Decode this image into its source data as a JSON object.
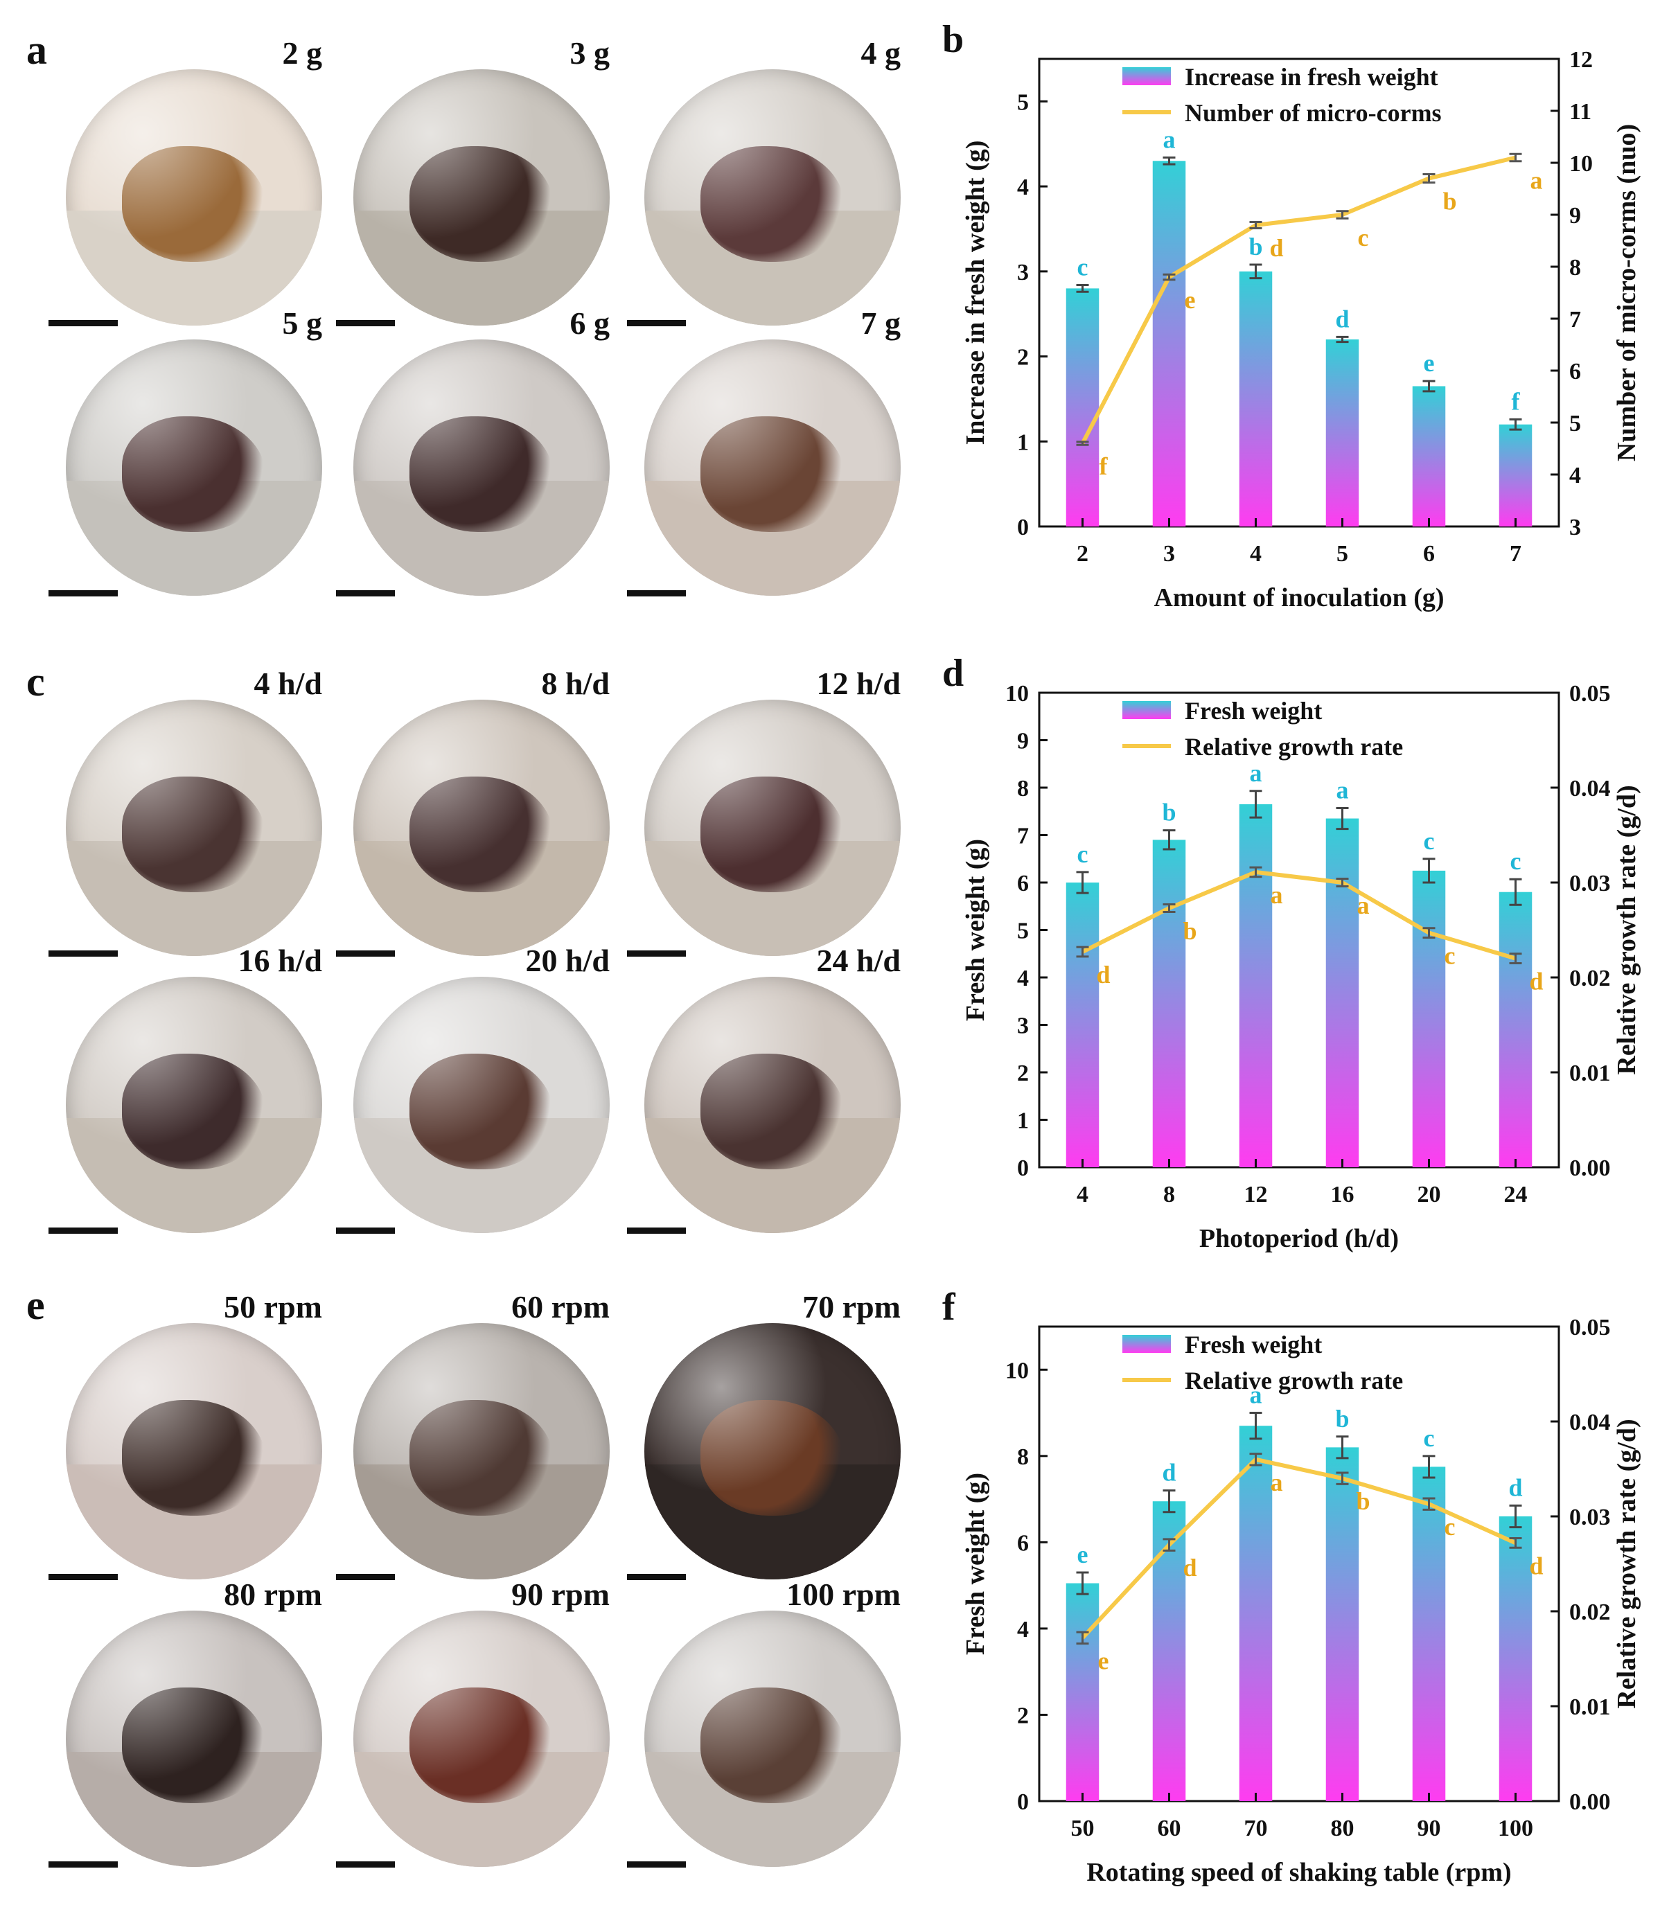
{
  "panels": {
    "a": {
      "letter": "a",
      "photos": [
        {
          "label": "2 g",
          "bg": "#e8ddd2",
          "tissue": "#9a6a3a",
          "media": "#d9d2c8"
        },
        {
          "label": "3 g",
          "bg": "#c9c4bd",
          "tissue": "#3e2a26",
          "media": "#b8b2a8"
        },
        {
          "label": "4 g",
          "bg": "#d6d1cb",
          "tissue": "#5b3a3a",
          "media": "#c9c2b8"
        },
        {
          "label": "5 g",
          "bg": "#cfcdc9",
          "tissue": "#4a3030",
          "media": "#c4c1bb"
        },
        {
          "label": "6 g",
          "bg": "#cfcac6",
          "tissue": "#3f2a2a",
          "media": "#c2bcb6"
        },
        {
          "label": "7 g",
          "bg": "#d9d2cd",
          "tissue": "#6a4535",
          "media": "#cbbfb5"
        }
      ]
    },
    "c": {
      "letter": "c",
      "photos": [
        {
          "label": "4 h/d",
          "bg": "#d7d0c8",
          "tissue": "#4a3432",
          "media": "#c6beb4"
        },
        {
          "label": "8 h/d",
          "bg": "#cfc6bd",
          "tissue": "#463030",
          "media": "#c3b8ab"
        },
        {
          "label": "12 h/d",
          "bg": "#d4cec8",
          "tissue": "#4d2f30",
          "media": "#c8bfb5"
        },
        {
          "label": "16 h/d",
          "bg": "#d2ccc6",
          "tissue": "#3e2b2c",
          "media": "#c5bdb3"
        },
        {
          "label": "20 h/d",
          "bg": "#dcdad8",
          "tissue": "#5a3b33",
          "media": "#cfcac5"
        },
        {
          "label": "24 h/d",
          "bg": "#cfc6bf",
          "tissue": "#4a3331",
          "media": "#c3b8ad"
        }
      ]
    },
    "e": {
      "letter": "e",
      "photos": [
        {
          "label": "50 rpm",
          "bg": "#d9cfcb",
          "tissue": "#3d2c28",
          "media": "#cbbdb7"
        },
        {
          "label": "60 rpm",
          "bg": "#b9b3ae",
          "tissue": "#4f3a34",
          "media": "#a59c94"
        },
        {
          "label": "70 rpm",
          "bg": "#3b302e",
          "tissue": "#6a3b25",
          "media": "#2e2624"
        },
        {
          "label": "80 rpm",
          "bg": "#c8c2bf",
          "tissue": "#2e2220",
          "media": "#b6ada8"
        },
        {
          "label": "90 rpm",
          "bg": "#d7cfcb",
          "tissue": "#6a2f25",
          "media": "#cbbfb8"
        },
        {
          "label": "100 rpm",
          "bg": "#cfcbc8",
          "tissue": "#5a4036",
          "media": "#c3bcb6"
        }
      ]
    }
  },
  "chart_data": [
    {
      "panel_letter": "b",
      "type": "bar",
      "categories": [
        "2",
        "3",
        "4",
        "5",
        "6",
        "7"
      ],
      "xlabel": "Amount of inoculation (g)",
      "ylabel": "Increase in fresh weight (g)",
      "ylabel_right": "Number of micro-corms (nuo)",
      "ylim": [
        0,
        5.5
      ],
      "yticks": [
        0,
        1,
        2,
        3,
        4,
        5
      ],
      "ylim_right": [
        3,
        12
      ],
      "yticks_right": [
        3,
        4,
        5,
        6,
        7,
        8,
        9,
        10,
        11,
        12
      ],
      "legend": {
        "bar": "Increase in fresh weight",
        "line": "Number of micro-corms"
      },
      "series": [
        {
          "name": "Increase in fresh weight",
          "kind": "bar",
          "axis": "left",
          "values": [
            2.8,
            4.3,
            3.0,
            2.2,
            1.65,
            1.2
          ],
          "errors": [
            0.04,
            0.04,
            0.08,
            0.03,
            0.06,
            0.06
          ],
          "letters": [
            "c",
            "a",
            "b",
            "d",
            "e",
            "f"
          ]
        },
        {
          "name": "Number of micro-corms",
          "kind": "line",
          "axis": "right",
          "values": [
            4.6,
            7.8,
            8.8,
            9.0,
            9.7,
            10.1
          ],
          "errors": [
            0.03,
            0.05,
            0.06,
            0.07,
            0.08,
            0.07
          ],
          "letters": [
            "f",
            "e",
            "d",
            "c",
            "b",
            "a"
          ]
        }
      ]
    },
    {
      "panel_letter": "d",
      "type": "bar",
      "categories": [
        "4",
        "8",
        "12",
        "16",
        "20",
        "24"
      ],
      "xlabel": "Photoperiod (h/d)",
      "ylabel": "Fresh weight (g)",
      "ylabel_right": "Relative growth rate (g/d)",
      "ylim": [
        0,
        10
      ],
      "yticks": [
        0,
        1,
        2,
        3,
        4,
        5,
        6,
        7,
        8,
        9,
        10
      ],
      "ylim_right": [
        0,
        0.05
      ],
      "yticks_right": [
        "0.00",
        "0.01",
        "0.02",
        "0.03",
        "0.04",
        "0.05"
      ],
      "legend": {
        "bar": "Fresh weight",
        "line": "Relative growth rate"
      },
      "series": [
        {
          "name": "Fresh weight",
          "kind": "bar",
          "axis": "left",
          "values": [
            6.0,
            6.9,
            7.65,
            7.35,
            6.25,
            5.8
          ],
          "errors": [
            0.22,
            0.2,
            0.28,
            0.22,
            0.25,
            0.27
          ],
          "letters": [
            "c",
            "b",
            "a",
            "a",
            "c",
            "c"
          ]
        },
        {
          "name": "Relative growth rate",
          "kind": "line",
          "axis": "right",
          "values": [
            0.0227,
            0.0273,
            0.0311,
            0.03,
            0.0247,
            0.022
          ],
          "errors": [
            0.0005,
            0.0004,
            0.0005,
            0.0004,
            0.0005,
            0.0005
          ],
          "letters": [
            "d",
            "b",
            "a",
            "a",
            "c",
            "d"
          ]
        }
      ]
    },
    {
      "panel_letter": "f",
      "type": "bar",
      "categories": [
        "50",
        "60",
        "70",
        "80",
        "90",
        "100"
      ],
      "xlabel": "Rotating speed of shaking table (rpm)",
      "ylabel": "Fresh weight (g)",
      "ylabel_right": "Relative growth rate (g/d)",
      "ylim": [
        0,
        11
      ],
      "yticks": [
        0,
        2,
        4,
        6,
        8,
        10
      ],
      "ylim_right": [
        0,
        0.05
      ],
      "yticks_right": [
        "0.00",
        "0.01",
        "0.02",
        "0.03",
        "0.04",
        "0.05"
      ],
      "legend": {
        "bar": "Fresh weight",
        "line": "Relative growth rate"
      },
      "series": [
        {
          "name": "Fresh weight",
          "kind": "bar",
          "axis": "left",
          "values": [
            5.05,
            6.95,
            8.7,
            8.2,
            7.75,
            6.6
          ],
          "errors": [
            0.25,
            0.25,
            0.3,
            0.25,
            0.25,
            0.25
          ],
          "letters": [
            "e",
            "d",
            "a",
            "b",
            "c",
            "d"
          ]
        },
        {
          "name": "Relative growth rate",
          "kind": "line",
          "axis": "right",
          "values": [
            0.0172,
            0.027,
            0.036,
            0.034,
            0.0313,
            0.0272
          ],
          "errors": [
            0.0006,
            0.0006,
            0.0006,
            0.0006,
            0.0006,
            0.0005
          ],
          "letters": [
            "e",
            "d",
            "a",
            "b",
            "c",
            "d"
          ]
        }
      ]
    }
  ],
  "colors": {
    "bar_top": "#32d0d6",
    "bar_bottom": "#ff3cf0",
    "line": "#f7c948",
    "bar_letter": "#1fb6d6",
    "line_letter": "#e8a61a",
    "axis": "#111111"
  }
}
